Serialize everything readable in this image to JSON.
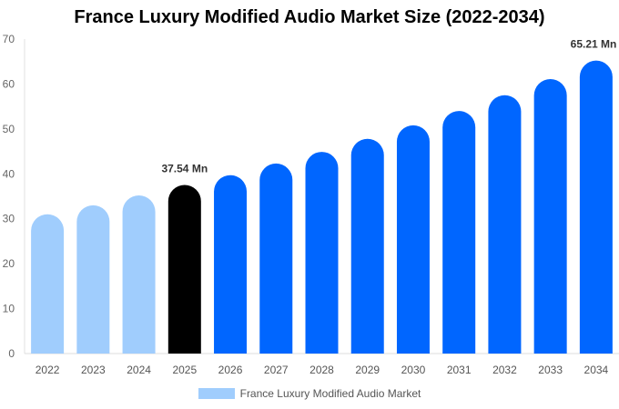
{
  "chart_data": {
    "type": "bar",
    "title": "France Luxury Modified Audio Market Size (2022-2034)",
    "xlabel": "",
    "ylabel": "",
    "ylim": [
      0,
      70
    ],
    "yticks": [
      0,
      10,
      20,
      30,
      40,
      50,
      60,
      70
    ],
    "grid": false,
    "legend_position": "bottom",
    "categories": [
      "2022",
      "2023",
      "2024",
      "2025",
      "2026",
      "2027",
      "2028",
      "2029",
      "2030",
      "2031",
      "2032",
      "2033",
      "2034"
    ],
    "series": [
      {
        "name": "France Luxury Modified Audio Market",
        "values": [
          31.0,
          33.0,
          35.2,
          37.54,
          39.7,
          42.3,
          44.9,
          47.8,
          50.8,
          54.0,
          57.5,
          61.1,
          65.21
        ]
      }
    ],
    "bar_colors": [
      "#a0cdfd",
      "#a0cdfd",
      "#a0cdfd",
      "#000000",
      "#0066ff",
      "#0066ff",
      "#0066ff",
      "#0066ff",
      "#0066ff",
      "#0066ff",
      "#0066ff",
      "#0066ff",
      "#0066ff"
    ],
    "legend_color": "#a0cdfd",
    "data_labels": [
      {
        "index": 3,
        "text": "37.54 Mn"
      },
      {
        "index": 12,
        "text": "65.21 Mn"
      }
    ]
  }
}
